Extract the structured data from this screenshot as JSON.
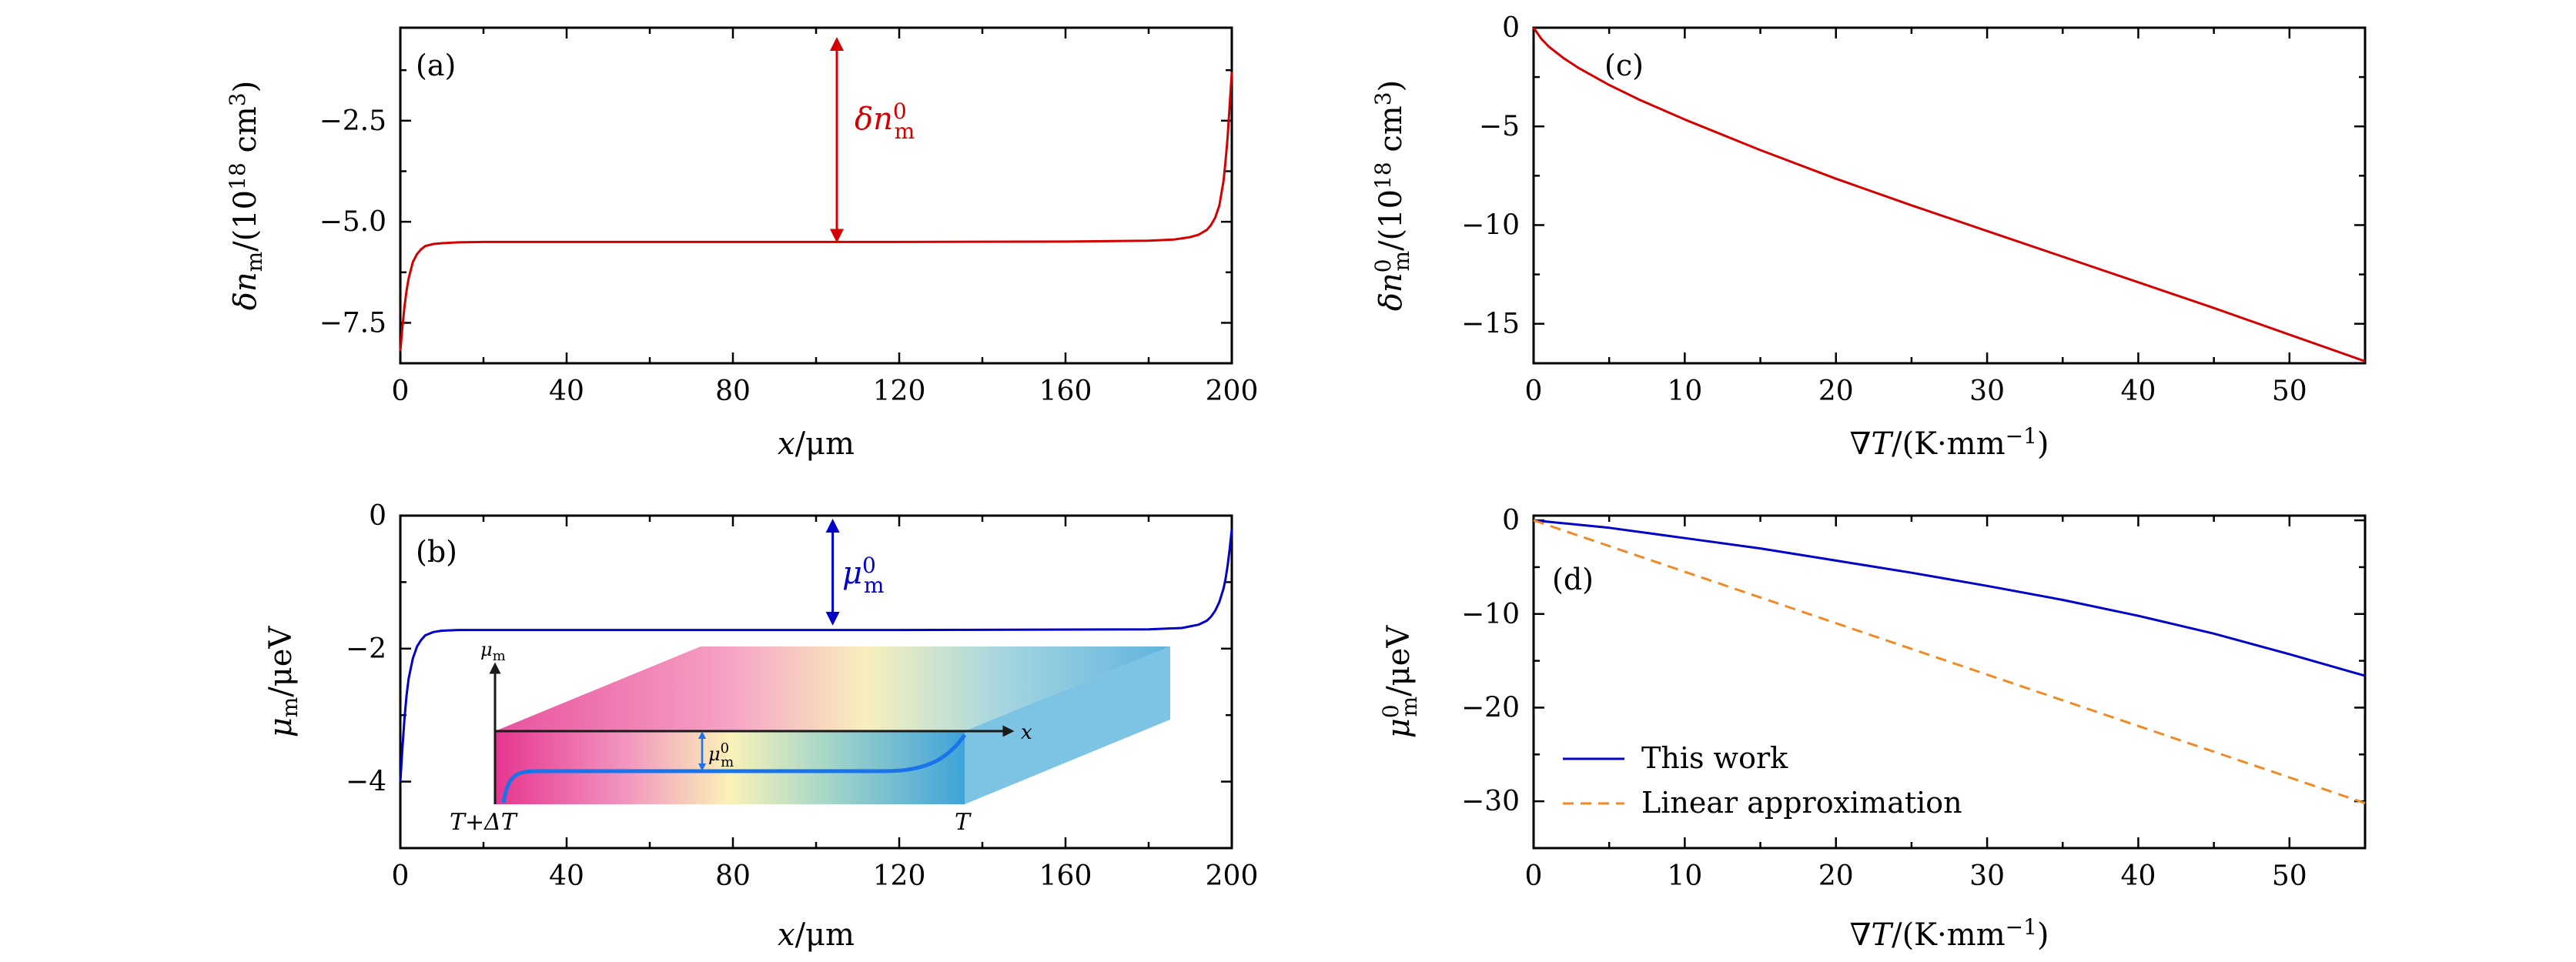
{
  "colors": {
    "red": "#d40000",
    "blue": "#0000c8",
    "orange": "#f08a24",
    "inset_blue": "#1a73e8",
    "inset_pink": "#d63384",
    "axis": "#000000"
  },
  "chart_data": [
    {
      "id": "a",
      "type": "line",
      "panel_label": "(a)",
      "xlabel": "x/μm",
      "ylabel": "δn_m/(10^18 cm^3)",
      "xlim": [
        0,
        200
      ],
      "ylim": [
        -8.5,
        -0.2
      ],
      "xticks": [
        0,
        40,
        80,
        120,
        160,
        200
      ],
      "xtick_labels": [
        "0",
        "40",
        "80",
        "120",
        "160",
        "200"
      ],
      "yticks": [
        -7.5,
        -5.0,
        -2.5
      ],
      "ytick_labels": [
        "−7.5",
        "−5.0",
        "−2.5"
      ],
      "series": [
        {
          "color": "#d40000",
          "x": [
            0,
            0.5,
            1,
            1.5,
            2,
            3,
            4,
            5,
            6,
            8,
            10,
            14,
            20,
            40,
            80,
            120,
            160,
            180,
            186,
            190,
            192,
            194,
            195,
            196,
            197,
            198,
            198.5,
            199,
            199.5,
            200
          ],
          "y": [
            -8.2,
            -7.6,
            -7.1,
            -6.7,
            -6.4,
            -6.0,
            -5.8,
            -5.68,
            -5.6,
            -5.55,
            -5.53,
            -5.51,
            -5.5,
            -5.5,
            -5.5,
            -5.5,
            -5.49,
            -5.47,
            -5.44,
            -5.38,
            -5.32,
            -5.2,
            -5.08,
            -4.9,
            -4.6,
            -4.0,
            -3.5,
            -2.9,
            -2.1,
            -1.3
          ]
        }
      ],
      "annotation": {
        "text": "δn_m^0",
        "at_x": 105,
        "from_y": -0.6,
        "to_y": -5.35
      }
    },
    {
      "id": "b",
      "type": "line",
      "panel_label": "(b)",
      "xlabel": "x/μm",
      "ylabel": "μ_m/μeV",
      "xlim": [
        0,
        200
      ],
      "ylim": [
        -5,
        0
      ],
      "xticks": [
        0,
        40,
        80,
        120,
        160,
        200
      ],
      "xtick_labels": [
        "0",
        "40",
        "80",
        "120",
        "160",
        "200"
      ],
      "yticks": [
        -4,
        -2,
        0
      ],
      "ytick_labels": [
        "−4",
        "−2",
        "0"
      ],
      "series": [
        {
          "color": "#0000c8",
          "x": [
            0,
            0.5,
            1,
            1.5,
            2,
            3,
            4,
            5,
            6,
            8,
            10,
            14,
            20,
            60,
            120,
            180,
            188,
            192,
            194,
            195,
            196,
            197,
            198,
            198.5,
            199,
            199.5,
            200
          ],
          "y": [
            -4.0,
            -3.5,
            -3.05,
            -2.7,
            -2.45,
            -2.15,
            -1.97,
            -1.87,
            -1.8,
            -1.75,
            -1.73,
            -1.72,
            -1.72,
            -1.72,
            -1.72,
            -1.71,
            -1.69,
            -1.64,
            -1.58,
            -1.52,
            -1.43,
            -1.3,
            -1.1,
            -0.95,
            -0.75,
            -0.5,
            -0.2
          ]
        }
      ],
      "annotation": {
        "text": "μ_m^0",
        "at_x": 104,
        "from_y": -0.15,
        "to_y": -1.55
      },
      "inset": {
        "y_axis_label": "μ_m",
        "x_axis_label": "x",
        "gap_label": "μ_m^0",
        "left_label": "T+ΔT",
        "right_label": "T"
      }
    },
    {
      "id": "c",
      "type": "line",
      "panel_label": "(c)",
      "xlabel": "∇T/(K·mm^−1)",
      "ylabel": "δn_m^0/(10^18 cm^3)",
      "xlim": [
        0,
        55
      ],
      "ylim": [
        -17,
        0
      ],
      "xticks": [
        0,
        10,
        20,
        30,
        40,
        50
      ],
      "xtick_labels": [
        "0",
        "10",
        "20",
        "30",
        "40",
        "50"
      ],
      "yticks": [
        -15,
        -10,
        -5,
        0
      ],
      "ytick_labels": [
        "−15",
        "−10",
        "−5",
        "0"
      ],
      "series": [
        {
          "color": "#d40000",
          "x": [
            0,
            0.5,
            1,
            2,
            3,
            5,
            7,
            10,
            15,
            20,
            25,
            30,
            35,
            40,
            45,
            50,
            55
          ],
          "y": [
            0,
            -0.55,
            -0.95,
            -1.55,
            -2.05,
            -2.9,
            -3.65,
            -4.65,
            -6.2,
            -7.65,
            -9.0,
            -10.3,
            -11.6,
            -12.9,
            -14.2,
            -15.55,
            -16.9
          ]
        }
      ]
    },
    {
      "id": "d",
      "type": "line",
      "panel_label": "(d)",
      "xlabel": "∇T/(K·mm^−1)",
      "ylabel": "μ_m^0/μeV",
      "xlim": [
        0,
        55
      ],
      "ylim": [
        -35,
        0.5
      ],
      "xticks": [
        0,
        10,
        20,
        30,
        40,
        50
      ],
      "xtick_labels": [
        "0",
        "10",
        "20",
        "30",
        "40",
        "50"
      ],
      "yticks": [
        -30,
        -20,
        -10,
        0
      ],
      "ytick_labels": [
        "−30",
        "−20",
        "−10",
        "0"
      ],
      "series": [
        {
          "name": "This work",
          "color": "#0000c8",
          "dash": false,
          "x": [
            0,
            5,
            10,
            15,
            20,
            25,
            30,
            35,
            40,
            45,
            50,
            55
          ],
          "y": [
            0,
            -0.8,
            -1.9,
            -3.0,
            -4.3,
            -5.6,
            -7.0,
            -8.5,
            -10.2,
            -12.1,
            -14.3,
            -16.6
          ]
        },
        {
          "name": "Linear approximation",
          "color": "#f08a24",
          "dash": true,
          "x": [
            0,
            55
          ],
          "y": [
            0,
            -30.2
          ]
        }
      ],
      "legend": {
        "position": "bottom-left"
      }
    }
  ]
}
